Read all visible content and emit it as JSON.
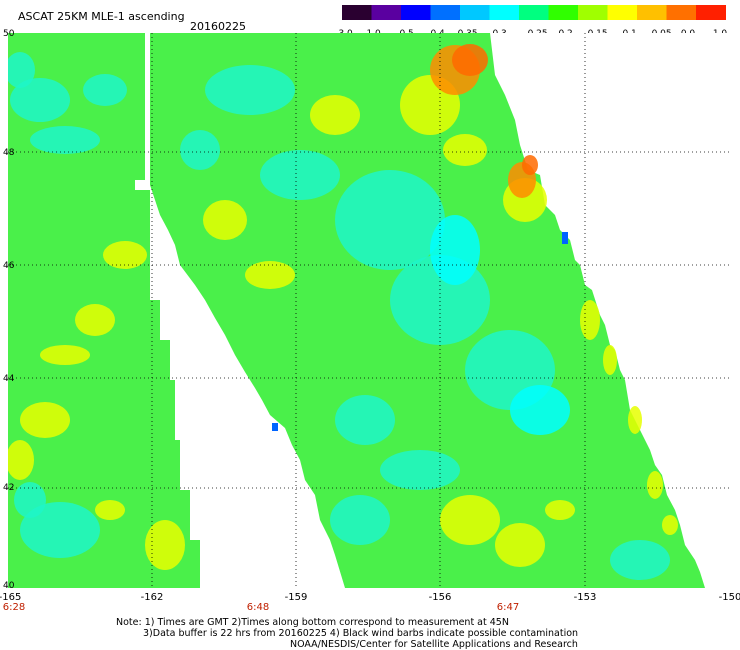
{
  "header": {
    "title": "ASCAT 25KM MLE-1 ascending",
    "date": "20160225"
  },
  "colorbar": {
    "ticks": [
      "-3.0",
      "-1.0",
      "-0.5",
      "-0.4",
      "-0.35",
      "-0.3",
      "-0.25",
      "-0.2",
      "-0.15",
      "-0.1",
      "-0.05",
      "0.0",
      "1.0"
    ],
    "colors": [
      "#2a0030",
      "#5a00a0",
      "#0000ff",
      "#0070ff",
      "#00c8ff",
      "#00ffff",
      "#00ff80",
      "#30ff00",
      "#a0ff00",
      "#ffff00",
      "#ffc000",
      "#ff7000",
      "#ff2000"
    ]
  },
  "map": {
    "lat_labels": [
      "50",
      "48",
      "46",
      "44",
      "42",
      "40"
    ],
    "lon_labels": [
      "-165",
      "-162",
      "-159",
      "-156",
      "-153",
      "-150"
    ],
    "time_labels": [
      "6:28",
      "6:48",
      "6:47"
    ],
    "gridlines": true,
    "swath_colors": {
      "background": "#4af04a",
      "cyan": "#1ef6c8",
      "deep_cyan": "#00ffff",
      "yellow": "#e6ff00",
      "orange": "#ff8c00",
      "dark_orange": "#ff6a00",
      "blue": "#0064ff"
    }
  },
  "footer": {
    "note_line1": "Note: 1) Times are GMT 2)Times along bottom correspond to measurement at 45N",
    "note_line2": "3)Data buffer is 22 hrs from 20160225 4) Black wind barbs indicate possible contamination",
    "note_line3": "NOAA/NESDIS/Center for Satellite Applications and Research"
  }
}
